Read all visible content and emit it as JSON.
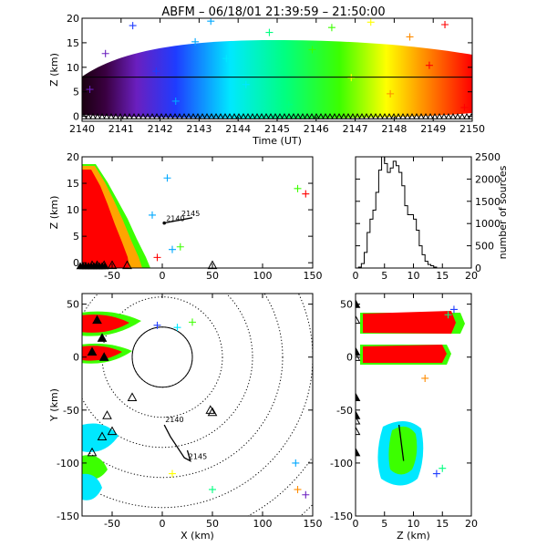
{
  "title": "ABFM – 06/18/01 21:39:59 – 21:50:00",
  "chart_data": [
    {
      "id": "time-height",
      "type": "scatter",
      "xlabel": "Time (UT)",
      "ylabel": "Z (km)",
      "xlim": [
        2140,
        2150
      ],
      "ylim": [
        -1,
        20
      ],
      "xticks": [
        2140,
        2141,
        2142,
        2143,
        2144,
        2145,
        2146,
        2147,
        2148,
        2149,
        2150
      ],
      "yticks": [
        0,
        5,
        10,
        15,
        20
      ],
      "horizontal_line_y": 8,
      "color_encoding": "time (purple → blue → cyan → green → yellow → red)",
      "points": [
        [
          2140.2,
          5.5
        ],
        [
          2140.6,
          12.8
        ],
        [
          2141.3,
          18.5
        ],
        [
          2141.9,
          9.2
        ],
        [
          2142.4,
          3.1
        ],
        [
          2142.9,
          15.2
        ],
        [
          2143.3,
          19.4
        ],
        [
          2143.7,
          11.8
        ],
        [
          2144.2,
          6.5
        ],
        [
          2144.8,
          17.1
        ],
        [
          2145.3,
          2.4
        ],
        [
          2145.9,
          13.6
        ],
        [
          2146.4,
          18.1
        ],
        [
          2146.9,
          7.9
        ],
        [
          2147.4,
          19.2
        ],
        [
          2147.9,
          4.6
        ],
        [
          2148.4,
          16.2
        ],
        [
          2148.9,
          10.4
        ],
        [
          2149.3,
          18.7
        ],
        [
          2149.8,
          1.8
        ]
      ]
    },
    {
      "id": "x-height",
      "type": "scatter",
      "xlabel": "",
      "ylabel": "Z (km)",
      "xlim": [
        -80,
        150
      ],
      "ylim": [
        -1,
        20
      ],
      "xticks": [
        -50,
        0,
        50,
        100,
        150
      ],
      "yticks": [
        0,
        5,
        10,
        15,
        20
      ],
      "labels": [
        "2140",
        "2145"
      ],
      "track": [
        [
          2,
          7.5
        ],
        [
          30,
          8.5
        ]
      ],
      "outliers": [
        [
          5,
          16
        ],
        [
          135,
          14
        ],
        [
          143,
          13
        ],
        [
          -10,
          9
        ],
        [
          18,
          3
        ],
        [
          -5,
          1
        ],
        [
          10,
          2.5
        ]
      ],
      "stations_x": [
        -70,
        -65,
        -58,
        -50,
        -35,
        50
      ]
    },
    {
      "id": "height-histogram",
      "type": "bar",
      "xlabel": "",
      "ylabel": "number of sources",
      "xlim": [
        0,
        20
      ],
      "ylim": [
        0,
        2500
      ],
      "xticks": [
        0,
        5,
        10,
        15,
        20
      ],
      "yticks": [
        0,
        500,
        1000,
        1500,
        2000,
        2500
      ],
      "bin_width_km": 0.5,
      "counts": [
        0,
        20,
        100,
        350,
        800,
        1100,
        1300,
        1700,
        2200,
        2500,
        2350,
        2150,
        2250,
        2400,
        2300,
        2150,
        1850,
        1400,
        1200,
        1200,
        1100,
        850,
        500,
        300,
        150,
        80,
        50,
        20,
        0,
        0,
        0,
        0,
        0,
        0,
        0,
        0,
        0,
        0,
        0,
        0
      ]
    },
    {
      "id": "plan-view",
      "type": "scatter",
      "xlabel": "X (km)",
      "ylabel": "Y (km)",
      "xlim": [
        -80,
        150
      ],
      "ylim": [
        -150,
        60
      ],
      "xticks": [
        -50,
        0,
        50,
        100,
        150
      ],
      "yticks": [
        -150,
        -100,
        -50,
        0,
        50
      ],
      "range_rings_km": [
        30,
        60,
        90,
        120,
        150,
        180,
        210
      ],
      "labels": [
        "2140",
        "2145"
      ],
      "track": [
        [
          2,
          -64
        ],
        [
          8,
          -75
        ],
        [
          22,
          -95
        ],
        [
          28,
          -98
        ],
        [
          25,
          -88
        ]
      ],
      "stations": [
        [
          -70,
          5
        ],
        [
          -65,
          35
        ],
        [
          -60,
          18
        ],
        [
          -58,
          0
        ],
        [
          -55,
          -55
        ],
        [
          -50,
          -70
        ],
        [
          -70,
          -90
        ],
        [
          -60,
          -75
        ],
        [
          -30,
          -38
        ],
        [
          50,
          -52
        ],
        [
          48,
          -50
        ]
      ],
      "outliers": [
        [
          -5,
          30
        ],
        [
          15,
          28
        ],
        [
          30,
          33
        ],
        [
          135,
          -125
        ],
        [
          143,
          -130
        ],
        [
          133,
          -100
        ],
        [
          50,
          -125
        ],
        [
          10,
          -110
        ]
      ]
    },
    {
      "id": "height-y",
      "type": "scatter",
      "xlabel": "Z (km)",
      "ylabel": "",
      "xlim": [
        0,
        20
      ],
      "ylim": [
        -150,
        60
      ],
      "xticks": [
        0,
        5,
        10,
        15,
        20
      ],
      "yticks": [
        -150,
        -100,
        -50,
        0,
        50
      ],
      "track": [
        [
          7.5,
          -64
        ],
        [
          8.3,
          -98
        ]
      ],
      "stations_y": [
        50,
        35,
        5,
        0,
        -55,
        -70,
        -90,
        -60,
        -38
      ],
      "outliers": [
        [
          17,
          45
        ],
        [
          16,
          40
        ],
        [
          12,
          -20
        ],
        [
          14,
          -110
        ],
        [
          15,
          -105
        ]
      ]
    }
  ]
}
